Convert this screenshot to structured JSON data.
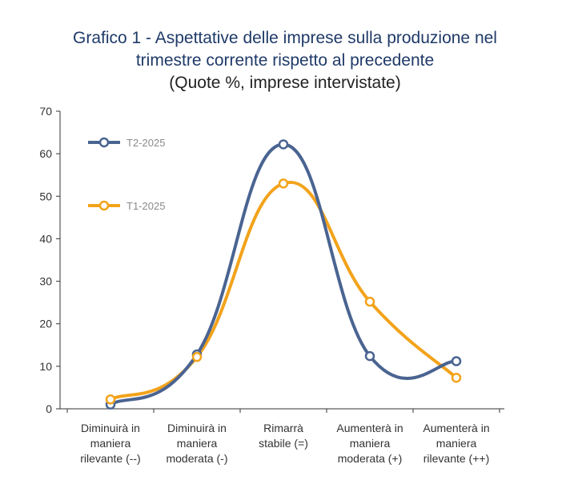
{
  "title_lines": [
    "Grafico 1 - Aspettative delle imprese sulla produzione nel",
    "trimestre corrente rispetto al precedente"
  ],
  "subtitle": "(Quote %, imprese intervistate)",
  "colors": {
    "T2-2025": "#4a6491",
    "T1-2025": "#f2a31b",
    "axis": "#333333"
  },
  "chart_data": {
    "type": "line",
    "title": "Grafico 1 - Aspettative delle imprese sulla produzione nel trimestre corrente rispetto al precedente",
    "subtitle": "(Quote %, imprese intervistate)",
    "categories": [
      [
        "Diminuirà in",
        "maniera",
        "rilevante (--)"
      ],
      [
        "Diminuirà in",
        "maniera",
        "moderata (-)"
      ],
      [
        "Rimarrà",
        "stabile (=)"
      ],
      [
        "Aumenterà in",
        "maniera",
        "moderata (+)"
      ],
      [
        "Aumenterà in",
        "maniera",
        "rilevante (++)"
      ]
    ],
    "series": [
      {
        "name": "T2-2025",
        "values": [
          1,
          12.8,
          62.2,
          12.4,
          11.2
        ]
      },
      {
        "name": "T1-2025",
        "values": [
          2.2,
          12.2,
          53,
          25.2,
          7.3
        ]
      }
    ],
    "ylim": [
      0,
      70
    ],
    "yticks": [
      0,
      10,
      20,
      30,
      40,
      50,
      60,
      70
    ],
    "grid": false,
    "legend_position": "top-left"
  }
}
